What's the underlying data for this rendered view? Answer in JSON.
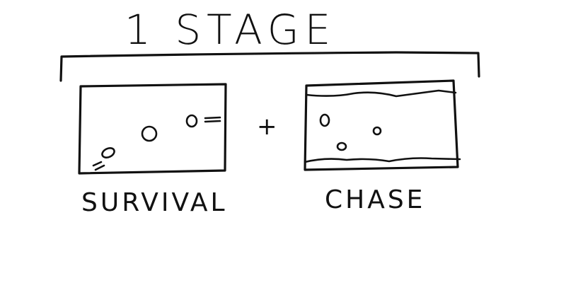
{
  "title": "1 STAGE",
  "operator": "+",
  "panels": [
    {
      "label": "SURVIVAL"
    },
    {
      "label": "CHASE"
    }
  ],
  "colors": {
    "ink": "#111111",
    "background": "#ffffff"
  }
}
